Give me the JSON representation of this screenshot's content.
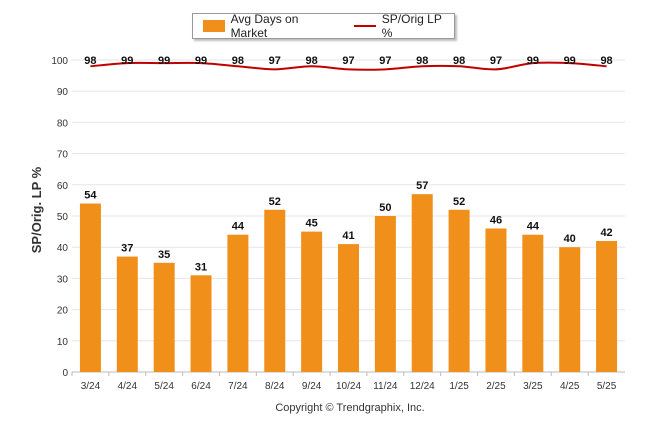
{
  "legend": {
    "bar_label": "Avg Days on Market",
    "line_label": "SP/Orig LP %"
  },
  "colors": {
    "bar": "#f0901b",
    "line": "#c00000",
    "grid": "#e6e6e6"
  },
  "footer": {
    "copyright": "Copyright © Trendgraphix, Inc."
  },
  "chart_data": {
    "type": "bar",
    "ylabel": "SP/Orig. LP %",
    "ylim": [
      0,
      100
    ],
    "yticks": [
      0,
      10,
      20,
      30,
      40,
      50,
      60,
      70,
      80,
      90,
      100
    ],
    "grid": true,
    "legend_position": "top",
    "categories": [
      "3/24",
      "4/24",
      "5/24",
      "6/24",
      "7/24",
      "8/24",
      "9/24",
      "10/24",
      "11/24",
      "12/24",
      "1/25",
      "2/25",
      "3/25",
      "4/25",
      "5/25"
    ],
    "series": [
      {
        "name": "Avg Days on Market",
        "type": "bar",
        "values": [
          54,
          37,
          35,
          31,
          44,
          52,
          45,
          41,
          50,
          57,
          52,
          46,
          44,
          40,
          42
        ]
      },
      {
        "name": "SP/Orig LP %",
        "type": "line",
        "values": [
          98,
          99,
          99,
          99,
          98,
          97,
          98,
          97,
          97,
          98,
          98,
          97,
          99,
          99,
          98
        ]
      }
    ]
  }
}
